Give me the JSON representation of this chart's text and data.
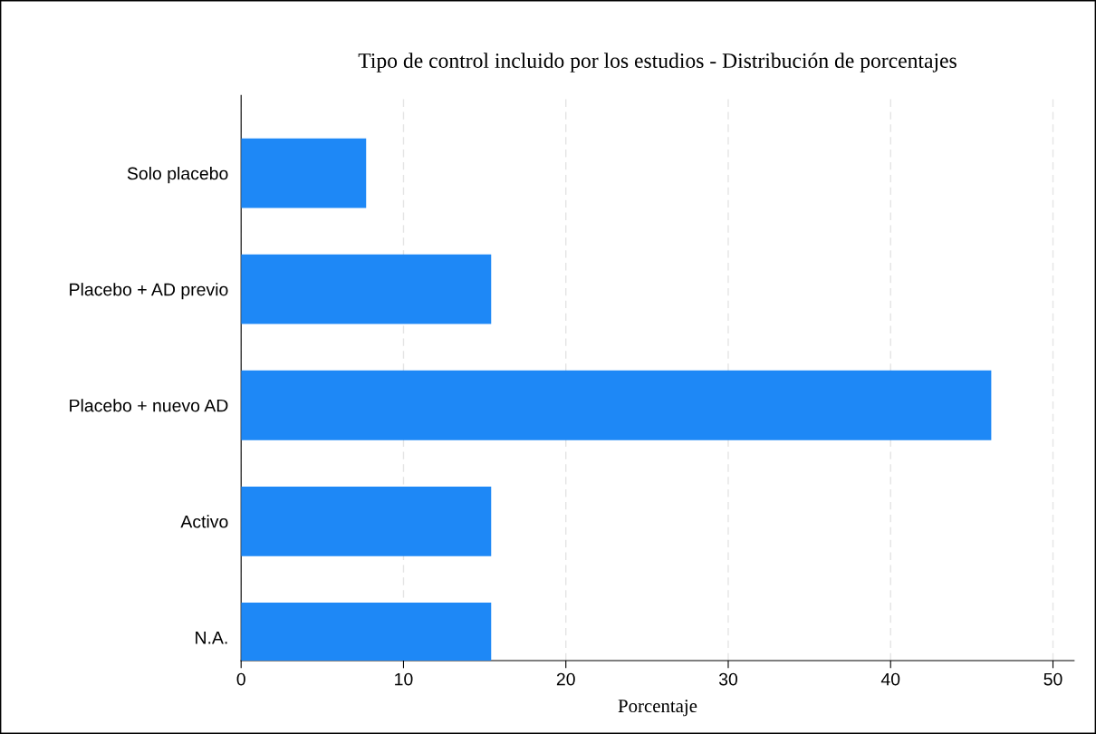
{
  "chart_data": {
    "type": "bar",
    "orientation": "horizontal",
    "title": "Tipo de control incluido por los estudios - Distribución de porcentajes",
    "xlabel": "Porcentaje",
    "categories": [
      "Solo placebo",
      "Placebo + AD previo",
      "Placebo + nuevo AD",
      "Activo",
      "N.A."
    ],
    "values": [
      7.7,
      15.4,
      46.2,
      15.4,
      15.4
    ],
    "color": "#1e88f6",
    "xlim": [
      0,
      51.3
    ],
    "xticks": [
      0,
      10,
      20,
      30,
      40,
      50
    ],
    "grid": "x",
    "legend": false
  }
}
